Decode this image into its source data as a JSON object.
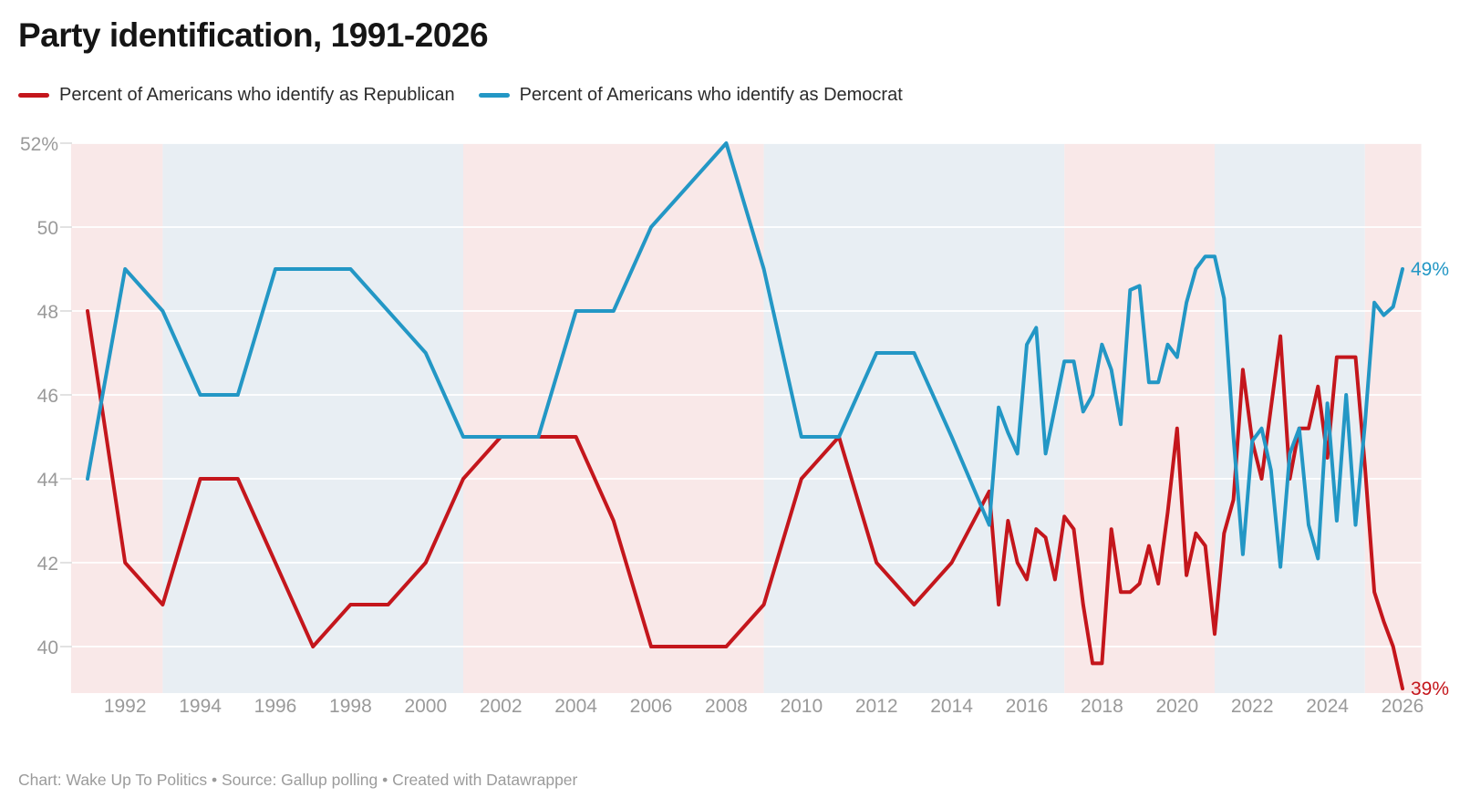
{
  "title": "Party identification, 1991-2026",
  "legend": {
    "republican_label": "Percent of Americans who identify as Republican",
    "democrat_label": "Percent of Americans who identify as Democrat"
  },
  "footer": "Chart: Wake Up To Politics • Source: Gallup polling • Created with Datawrapper",
  "colors": {
    "republican": "#c4161c",
    "democrat": "#2397c5",
    "band_republican": "#f9e8e8",
    "band_democrat": "#e8eef3",
    "gridline_over_band": "rgba(255,255,255,0.85)",
    "gridline_stub": "#e2e2e2",
    "axis_text": "#9a9a9a",
    "title_text": "#151515",
    "legend_text": "#2b2b2b",
    "footer_text": "#9b9b9b"
  },
  "chart_data": {
    "type": "line",
    "title": "Party identification, 1991-2026",
    "x_axis": {
      "range": [
        1990.56,
        2026.5
      ],
      "ticks": [
        1992,
        1994,
        1996,
        1998,
        2000,
        2002,
        2004,
        2006,
        2008,
        2010,
        2012,
        2014,
        2016,
        2018,
        2020,
        2022,
        2024,
        2026
      ]
    },
    "y_axis": {
      "range": [
        38.9,
        52
      ],
      "tick_values": [
        52,
        50,
        48,
        46,
        44,
        42,
        40
      ],
      "tick_labels": [
        "52%",
        "50",
        "48",
        "46",
        "44",
        "42",
        "40"
      ],
      "grid": true
    },
    "bands": [
      {
        "start": 1990.56,
        "end": 1993,
        "party": "R"
      },
      {
        "start": 1993,
        "end": 2001,
        "party": "D"
      },
      {
        "start": 2001,
        "end": 2009,
        "party": "R"
      },
      {
        "start": 2009,
        "end": 2017,
        "party": "D"
      },
      {
        "start": 2017,
        "end": 2021,
        "party": "R"
      },
      {
        "start": 2021,
        "end": 2025,
        "party": "D"
      },
      {
        "start": 2025,
        "end": 2026.5,
        "party": "R"
      }
    ],
    "series": [
      {
        "name": "Percent of Americans who identify as Republican",
        "color_key": "republican",
        "end_label": "39%",
        "points": [
          [
            1991,
            48
          ],
          [
            1992,
            42
          ],
          [
            1993,
            41
          ],
          [
            1994,
            44
          ],
          [
            1995,
            44
          ],
          [
            1996,
            42
          ],
          [
            1997,
            40
          ],
          [
            1998,
            41
          ],
          [
            1999,
            41
          ],
          [
            2000,
            42
          ],
          [
            2001,
            44
          ],
          [
            2002,
            45
          ],
          [
            2003,
            45
          ],
          [
            2004,
            45
          ],
          [
            2005,
            43
          ],
          [
            2006,
            40
          ],
          [
            2007,
            40
          ],
          [
            2008,
            40
          ],
          [
            2009,
            41
          ],
          [
            2010,
            44
          ],
          [
            2011,
            45
          ],
          [
            2012,
            42
          ],
          [
            2013,
            41
          ],
          [
            2014,
            42
          ],
          [
            2015,
            43.7
          ],
          [
            2015.25,
            41
          ],
          [
            2015.5,
            43
          ],
          [
            2015.75,
            42
          ],
          [
            2016,
            41.6
          ],
          [
            2016.25,
            42.8
          ],
          [
            2016.5,
            42.6
          ],
          [
            2016.75,
            41.6
          ],
          [
            2017,
            43.1
          ],
          [
            2017.25,
            42.8
          ],
          [
            2017.5,
            41
          ],
          [
            2017.75,
            39.6
          ],
          [
            2018,
            39.6
          ],
          [
            2018.25,
            42.8
          ],
          [
            2018.5,
            41.3
          ],
          [
            2018.75,
            41.3
          ],
          [
            2019,
            41.5
          ],
          [
            2019.25,
            42.4
          ],
          [
            2019.5,
            41.5
          ],
          [
            2019.75,
            43.2
          ],
          [
            2020,
            45.2
          ],
          [
            2020.25,
            41.7
          ],
          [
            2020.5,
            42.7
          ],
          [
            2020.75,
            42.4
          ],
          [
            2021,
            40.3
          ],
          [
            2021.25,
            42.7
          ],
          [
            2021.5,
            43.5
          ],
          [
            2021.75,
            46.6
          ],
          [
            2022,
            44.9
          ],
          [
            2022.25,
            44
          ],
          [
            2022.5,
            45.7
          ],
          [
            2022.75,
            47.4
          ],
          [
            2023,
            44
          ],
          [
            2023.25,
            45.2
          ],
          [
            2023.5,
            45.2
          ],
          [
            2023.75,
            46.2
          ],
          [
            2024,
            44.5
          ],
          [
            2024.25,
            46.9
          ],
          [
            2024.5,
            46.9
          ],
          [
            2024.75,
            46.9
          ],
          [
            2025,
            44.3
          ],
          [
            2025.25,
            41.3
          ],
          [
            2025.5,
            40.6
          ],
          [
            2025.75,
            40
          ],
          [
            2026,
            39
          ]
        ]
      },
      {
        "name": "Percent of Americans who identify as Democrat",
        "color_key": "democrat",
        "end_label": "49%",
        "points": [
          [
            1991,
            44
          ],
          [
            1992,
            49
          ],
          [
            1993,
            48
          ],
          [
            1994,
            46
          ],
          [
            1995,
            46
          ],
          [
            1996,
            49
          ],
          [
            1997,
            49
          ],
          [
            1998,
            49
          ],
          [
            1999,
            48
          ],
          [
            2000,
            47
          ],
          [
            2001,
            45
          ],
          [
            2002,
            45
          ],
          [
            2003,
            45
          ],
          [
            2004,
            48
          ],
          [
            2005,
            48
          ],
          [
            2006,
            50
          ],
          [
            2007,
            51
          ],
          [
            2008,
            52
          ],
          [
            2009,
            49
          ],
          [
            2010,
            45
          ],
          [
            2011,
            45
          ],
          [
            2012,
            47
          ],
          [
            2013,
            47
          ],
          [
            2014,
            45
          ],
          [
            2015,
            42.9
          ],
          [
            2015.25,
            45.7
          ],
          [
            2015.5,
            45.1
          ],
          [
            2015.75,
            44.6
          ],
          [
            2016,
            47.2
          ],
          [
            2016.25,
            47.6
          ],
          [
            2016.5,
            44.6
          ],
          [
            2016.75,
            45.7
          ],
          [
            2017,
            46.8
          ],
          [
            2017.25,
            46.8
          ],
          [
            2017.5,
            45.6
          ],
          [
            2017.75,
            46
          ],
          [
            2018,
            47.2
          ],
          [
            2018.25,
            46.6
          ],
          [
            2018.5,
            45.3
          ],
          [
            2018.75,
            48.5
          ],
          [
            2019,
            48.6
          ],
          [
            2019.25,
            46.3
          ],
          [
            2019.5,
            46.3
          ],
          [
            2019.75,
            47.2
          ],
          [
            2020,
            46.9
          ],
          [
            2020.25,
            48.2
          ],
          [
            2020.5,
            49
          ],
          [
            2020.75,
            49.3
          ],
          [
            2021,
            49.3
          ],
          [
            2021.25,
            48.3
          ],
          [
            2021.5,
            45
          ],
          [
            2021.75,
            42.2
          ],
          [
            2022,
            44.9
          ],
          [
            2022.25,
            45.2
          ],
          [
            2022.5,
            44.2
          ],
          [
            2022.75,
            41.9
          ],
          [
            2023,
            44.6
          ],
          [
            2023.25,
            45.2
          ],
          [
            2023.5,
            42.9
          ],
          [
            2023.75,
            42.1
          ],
          [
            2024,
            45.8
          ],
          [
            2024.25,
            43
          ],
          [
            2024.5,
            46
          ],
          [
            2024.75,
            42.9
          ],
          [
            2025,
            45.3
          ],
          [
            2025.25,
            48.2
          ],
          [
            2025.5,
            47.9
          ],
          [
            2025.75,
            48.1
          ],
          [
            2026,
            49
          ]
        ]
      }
    ],
    "legend_position": "top"
  }
}
